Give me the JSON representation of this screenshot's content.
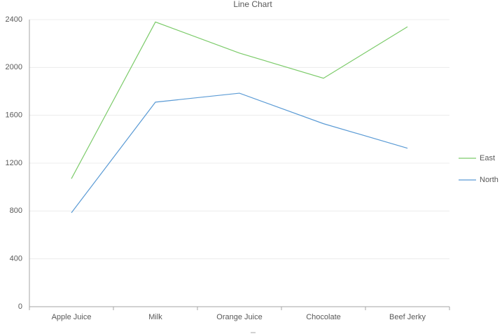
{
  "chart_data": {
    "type": "line",
    "title": "Line Chart",
    "categories": [
      "Apple Juice",
      "Milk",
      "Orange Juice",
      "Chocolate",
      "Beef Jerky"
    ],
    "series": [
      {
        "name": "East",
        "color": "#7ccb6a",
        "values": [
          1070,
          2380,
          2120,
          1910,
          2340
        ]
      },
      {
        "name": "North",
        "color": "#5b9bd5",
        "values": [
          785,
          1710,
          1785,
          1530,
          1325
        ]
      }
    ],
    "ylim": [
      0,
      2400
    ],
    "yticks": [
      0,
      400,
      800,
      1200,
      1600,
      2000,
      2400
    ],
    "grid": true,
    "legend": "right"
  }
}
